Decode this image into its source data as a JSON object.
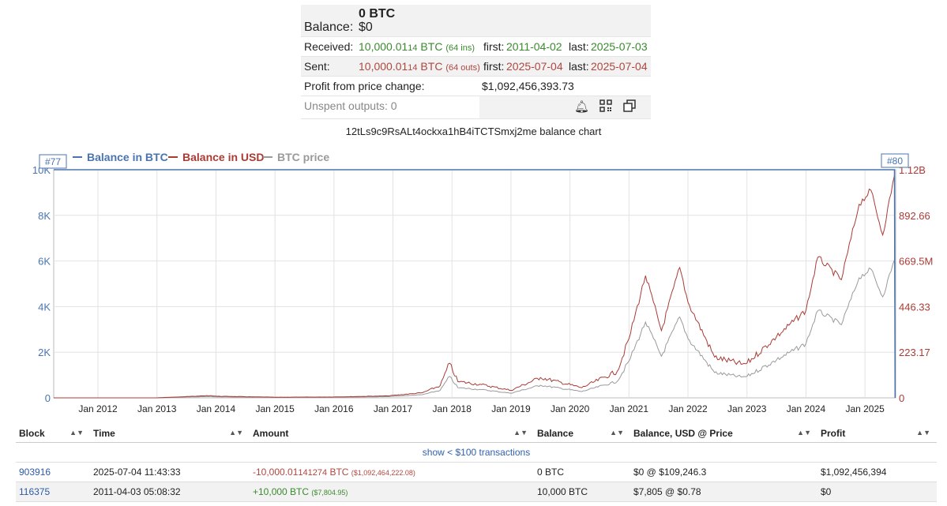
{
  "summary": {
    "balance_btc": "0 BTC",
    "balance_label": "Balance:",
    "balance_usd": "$0",
    "received": {
      "label": "Received:",
      "amount_main": "10,000.01",
      "amount_sub": "14",
      "unit": " BTC ",
      "count": "(64 ins)",
      "first_label": "first:",
      "first": "2011-04-02",
      "last_label": "last:",
      "last": "2025-07-03"
    },
    "sent": {
      "label": "Sent:",
      "amount_main": "10,000.01",
      "amount_sub": "14",
      "unit": " BTC ",
      "count": "(64 outs)",
      "first_label": "first:",
      "first": "2025-07-04",
      "last_label": "last:",
      "last": "2025-07-04"
    },
    "profit": {
      "label": "Profit from price change:",
      "value": "$1,092,456,393.73"
    },
    "unspent": {
      "label": "Unspent outputs: 0"
    },
    "icons": [
      "bell-icon",
      "qr-code-icon",
      "copy-icon"
    ]
  },
  "chart_title": "12tLs9c9RsALt4ockxa1hB4iTCTSmxj2me balance chart",
  "chart_data": {
    "type": "line",
    "legend": [
      {
        "name": "Balance in BTC",
        "color": "#4a74b0"
      },
      {
        "name": "Balance in USD",
        "color": "#a93b35"
      },
      {
        "name": "BTC price",
        "color": "#9a9a9a"
      }
    ],
    "legend_placement": "top-left",
    "markers": {
      "left": "#77",
      "right": "#80"
    },
    "x_ticks": [
      "Jan 2012",
      "Jan 2013",
      "Jan 2014",
      "Jan 2015",
      "Jan 2016",
      "Jan 2017",
      "Jan 2018",
      "Jan 2019",
      "Jan 2020",
      "Jan 2021",
      "Jan 2022",
      "Jan 2023",
      "Jan 2024",
      "Jan 2025"
    ],
    "y_left": {
      "ticks": [
        "0",
        "2K",
        "4K",
        "6K",
        "8K",
        "10K"
      ],
      "range": [
        0,
        10000
      ]
    },
    "y_right": {
      "ticks": [
        "0",
        "223.17",
        "446.33",
        "669.5M",
        "892.66",
        "1.12B"
      ],
      "range": [
        0,
        1120000000
      ]
    },
    "x_range": [
      2011.25,
      2025.52
    ],
    "balance_btc": {
      "x": [
        2011.25,
        2025.5,
        2025.51
      ],
      "y": [
        10000,
        10000,
        0
      ]
    },
    "btc_price_usd": {
      "x": [
        2011.25,
        2012.0,
        2013.0,
        2013.9,
        2014.0,
        2015.0,
        2016.0,
        2016.9,
        2017.5,
        2017.8,
        2017.96,
        2018.1,
        2018.5,
        2019.0,
        2019.5,
        2020.2,
        2020.8,
        2021.0,
        2021.28,
        2021.55,
        2021.86,
        2022.0,
        2022.45,
        2022.9,
        2023.0,
        2023.5,
        2024.0,
        2024.2,
        2024.6,
        2024.9,
        2025.1,
        2025.3,
        2025.5
      ],
      "y": [
        0.78,
        5,
        13,
        1100,
        800,
        320,
        430,
        950,
        2500,
        6000,
        17000,
        8000,
        6500,
        3700,
        10000,
        5000,
        13000,
        29000,
        60000,
        33000,
        64000,
        47000,
        20000,
        16500,
        17000,
        30000,
        43000,
        69000,
        58000,
        95000,
        102000,
        80000,
        109246
      ]
    },
    "balance_usd": {
      "x": [
        2011.25,
        2012.0,
        2013.0,
        2013.9,
        2014.0,
        2015.0,
        2016.0,
        2016.9,
        2017.5,
        2017.8,
        2017.96,
        2018.1,
        2018.5,
        2019.0,
        2019.5,
        2020.2,
        2020.8,
        2021.0,
        2021.28,
        2021.55,
        2021.86,
        2022.0,
        2022.45,
        2022.9,
        2023.0,
        2023.5,
        2024.0,
        2024.2,
        2024.6,
        2024.9,
        2025.1,
        2025.3,
        2025.5,
        2025.51
      ],
      "y": [
        7805,
        50000,
        130000,
        11000000,
        8000000,
        3200000,
        4300000,
        9500000,
        25000000,
        60000000,
        170000000,
        80000000,
        65000000,
        37000000,
        100000000,
        50000000,
        130000000,
        290000000,
        600000000,
        330000000,
        640000000,
        470000000,
        200000000,
        165000000,
        170000000,
        300000000,
        430000000,
        690000000,
        580000000,
        950000000,
        1020000000,
        800000000,
        1092464222,
        0
      ]
    }
  },
  "table": {
    "headers": [
      "Block",
      "Time",
      "Amount",
      "Balance",
      "Balance, USD @ Price",
      "Profit"
    ],
    "show_small_label": "show < $100 transactions",
    "rows": [
      {
        "block": "903916",
        "time": "2025-07-04 11:43:33",
        "amount_main": "-10,000.01",
        "amount_sub": "141274",
        "amount_unit": " BTC ",
        "amount_usd": "($1,092,464,222.08)",
        "balance": "0 BTC",
        "balance_usd": "$0 @ $109,246.3",
        "profit": "$1,092,456,394"
      },
      {
        "block": "116375",
        "time": "2011-04-03 05:08:32",
        "amount_main": "+10,000 BTC ",
        "amount_usd": "($7,804.95)",
        "balance": "10,000 BTC",
        "balance_usd": "$7,805 @ $0.78",
        "profit": "$0"
      }
    ]
  }
}
